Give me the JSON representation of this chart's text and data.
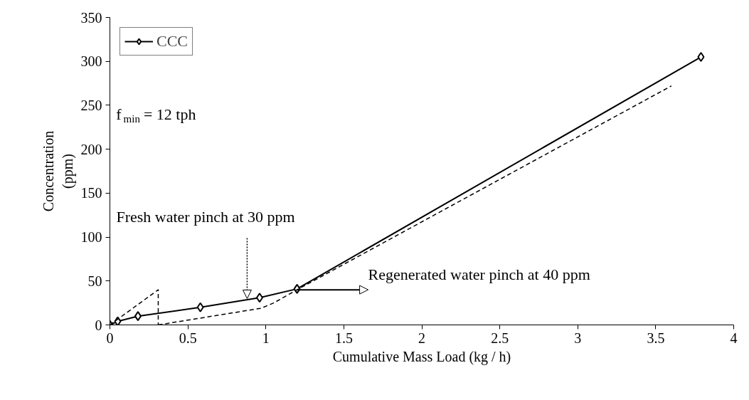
{
  "chart_data": {
    "type": "line",
    "xlabel": "Cumulative Mass Load (kg / h)",
    "ylabel": "Concentration\n(ppm)",
    "xlim": [
      0,
      4
    ],
    "xticks": [
      0,
      0.5,
      1,
      1.5,
      2,
      2.5,
      3,
      3.5,
      4
    ],
    "ylim": [
      0,
      350
    ],
    "yticks": [
      0,
      50,
      100,
      150,
      200,
      250,
      300,
      350
    ],
    "grid": false,
    "legend": "top left",
    "series": [
      {
        "name": "CCC",
        "color": "#000000",
        "marker": "diamond",
        "line_style": "solid",
        "x": [
          0,
          0.05,
          0.18,
          0.58,
          0.96,
          1.2,
          3.79
        ],
        "values": [
          0,
          4,
          10,
          20,
          31,
          41,
          305
        ]
      },
      {
        "color": "#000000",
        "marker": "none",
        "line_style": "dashed",
        "x": [
          0,
          0.31,
          0.31
        ],
        "values": [
          0,
          40,
          0
        ]
      },
      {
        "color": "#000000",
        "marker": "none",
        "line_style": "dashed",
        "x": [
          0.31,
          0.97,
          1.05,
          1.2,
          3.6
        ],
        "values": [
          0,
          19,
          25,
          40,
          272
        ]
      }
    ],
    "annotations": [
      "f$_{min}$ = 12 tph",
      {
        "text": "Fresh water pinch at 30 ppm",
        "x": 0.88,
        "y": 30
      },
      {
        "text": "Regenerated water pinch at 40 ppm",
        "x": 1.2,
        "y": 40
      }
    ]
  }
}
